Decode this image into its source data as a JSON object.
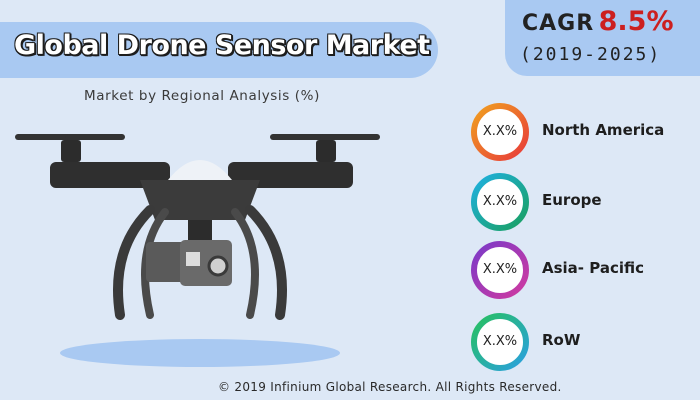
{
  "title": "Global Drone Sensor Market",
  "subtitle": "Market by Regional Analysis (%)",
  "cagr": {
    "label": "CAGR",
    "value": "8.5%",
    "period": "(2019-2025)",
    "value_color": "#cc1f1f"
  },
  "regions": [
    {
      "name": "North America",
      "value": "X.X%",
      "ring_colors": [
        "#f0a020",
        "#e83a3a"
      ]
    },
    {
      "name": "Europe",
      "value": "X.X%",
      "ring_colors": [
        "#1fb0e0",
        "#1aa060"
      ]
    },
    {
      "name": "Asia- Pacific",
      "value": "X.X%",
      "ring_colors": [
        "#7a3ac8",
        "#d03aa0"
      ]
    },
    {
      "name": "RoW",
      "value": "X.X%",
      "ring_colors": [
        "#28c060",
        "#2aa0e0"
      ]
    }
  ],
  "illustration": "drone-with-camera",
  "footer": "© 2019 Infinium Global Research. All Rights Reserved."
}
